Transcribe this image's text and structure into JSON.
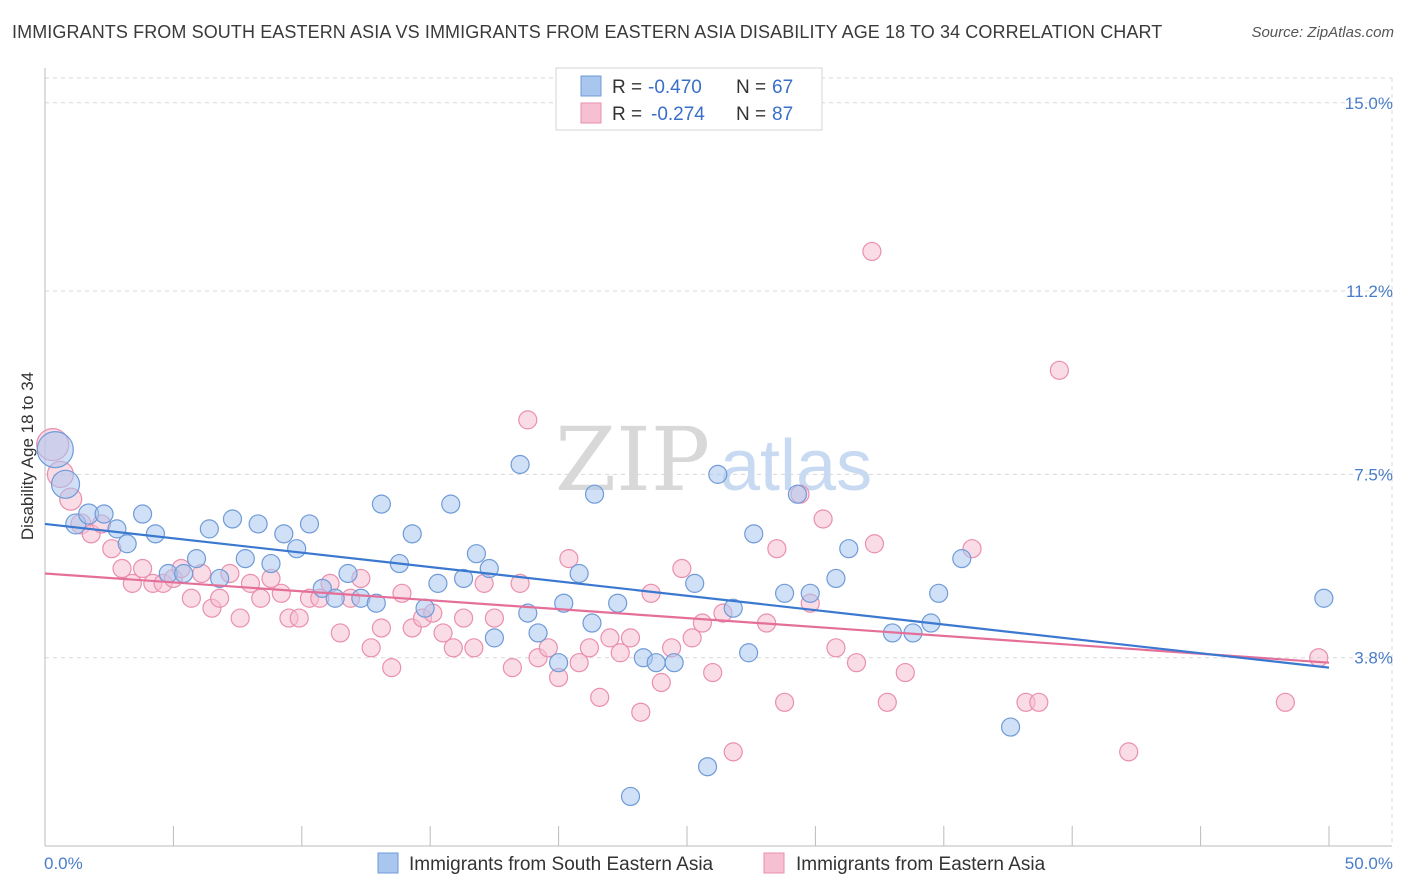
{
  "title": "IMMIGRANTS FROM SOUTH EASTERN ASIA VS IMMIGRANTS FROM EASTERN ASIA DISABILITY AGE 18 TO 34 CORRELATION CHART",
  "source": "Source: ZipAtlas.com",
  "watermark": {
    "zip": "ZIP",
    "atlas": "atlas"
  },
  "legend_box": {
    "rows": [
      {
        "r_label": "R =",
        "r_value": "-0.470",
        "n_label": "N =",
        "n_value": "67"
      },
      {
        "r_label": "R =",
        "r_value": "-0.274",
        "n_label": "N =",
        "n_value": "87"
      }
    ]
  },
  "bottom_legend": [
    "Immigrants from South Eastern Asia",
    "Immigrants from Eastern Asia"
  ],
  "colors": {
    "blue_fill": "#a9c6ef",
    "blue_stroke": "#6f9bd8",
    "blue_line": "#3b78d0",
    "pink_fill": "#f6c0d2",
    "pink_stroke": "#ea8fae",
    "pink_line": "#e46f99",
    "axis_label": "#4a7cc9",
    "grid": "#d8d8d8"
  },
  "chart_data": {
    "type": "scatter",
    "title": "IMMIGRANTS FROM SOUTH EASTERN ASIA VS IMMIGRANTS FROM EASTERN ASIA DISABILITY AGE 18 TO 34 CORRELATION CHART",
    "xlabel": "",
    "ylabel": "Disability Age 18 to 34",
    "xlim": [
      0,
      50
    ],
    "ylim": [
      0,
      15.5
    ],
    "x_tick_labels": [
      "0.0%",
      "50.0%"
    ],
    "y_ticks": [
      3.8,
      7.5,
      11.2,
      15.0
    ],
    "y_tick_labels": [
      "3.8%",
      "7.5%",
      "11.2%",
      "15.0%"
    ],
    "grid": true,
    "legend_position": "top-center",
    "series": [
      {
        "name": "Immigrants from South Eastern Asia",
        "R": -0.47,
        "N": 67,
        "trend": {
          "x": [
            0,
            50
          ],
          "y": [
            6.5,
            3.6
          ]
        },
        "points": [
          [
            0.4,
            8.0,
            18
          ],
          [
            0.8,
            7.3,
            14
          ],
          [
            1.2,
            6.5,
            10
          ],
          [
            1.7,
            6.7,
            10
          ],
          [
            2.3,
            6.7,
            9
          ],
          [
            2.8,
            6.4,
            9
          ],
          [
            3.2,
            6.1,
            9
          ],
          [
            3.8,
            6.7,
            9
          ],
          [
            4.3,
            6.3,
            9
          ],
          [
            4.8,
            5.5,
            9
          ],
          [
            5.4,
            5.5,
            9
          ],
          [
            5.9,
            5.8,
            9
          ],
          [
            6.4,
            6.4,
            9
          ],
          [
            6.8,
            5.4,
            9
          ],
          [
            7.3,
            6.6,
            9
          ],
          [
            7.8,
            5.8,
            9
          ],
          [
            8.3,
            6.5,
            9
          ],
          [
            8.8,
            5.7,
            9
          ],
          [
            9.3,
            6.3,
            9
          ],
          [
            9.8,
            6.0,
            9
          ],
          [
            10.3,
            6.5,
            9
          ],
          [
            10.8,
            5.2,
            9
          ],
          [
            11.3,
            5.0,
            9
          ],
          [
            11.8,
            5.5,
            9
          ],
          [
            12.3,
            5.0,
            9
          ],
          [
            12.9,
            4.9,
            9
          ],
          [
            13.1,
            6.9,
            9
          ],
          [
            13.8,
            5.7,
            9
          ],
          [
            14.3,
            6.3,
            9
          ],
          [
            14.8,
            4.8,
            9
          ],
          [
            15.3,
            5.3,
            9
          ],
          [
            15.8,
            6.9,
            9
          ],
          [
            16.3,
            5.4,
            9
          ],
          [
            16.8,
            5.9,
            9
          ],
          [
            17.3,
            5.6,
            9
          ],
          [
            17.5,
            4.2,
            9
          ],
          [
            18.5,
            7.7,
            9
          ],
          [
            18.8,
            4.7,
            9
          ],
          [
            19.2,
            4.3,
            9
          ],
          [
            20.0,
            3.7,
            9
          ],
          [
            20.2,
            4.9,
            9
          ],
          [
            20.8,
            5.5,
            9
          ],
          [
            21.3,
            4.5,
            9
          ],
          [
            21.4,
            7.1,
            9
          ],
          [
            22.3,
            4.9,
            9
          ],
          [
            22.8,
            1.0,
            9
          ],
          [
            23.3,
            3.8,
            9
          ],
          [
            23.8,
            3.7,
            9
          ],
          [
            24.5,
            3.7,
            9
          ],
          [
            25.3,
            5.3,
            9
          ],
          [
            25.8,
            1.6,
            9
          ],
          [
            26.2,
            7.5,
            9
          ],
          [
            26.8,
            4.8,
            9
          ],
          [
            27.4,
            3.9,
            9
          ],
          [
            27.6,
            6.3,
            9
          ],
          [
            28.8,
            5.1,
            9
          ],
          [
            29.3,
            7.1,
            9
          ],
          [
            29.8,
            5.1,
            9
          ],
          [
            30.8,
            5.4,
            9
          ],
          [
            31.3,
            6.0,
            9
          ],
          [
            33.0,
            4.3,
            9
          ],
          [
            33.8,
            4.3,
            9
          ],
          [
            34.5,
            4.5,
            9
          ],
          [
            34.8,
            5.1,
            9
          ],
          [
            35.7,
            5.8,
            9
          ],
          [
            37.6,
            2.4,
            9
          ],
          [
            49.8,
            5.0,
            9
          ]
        ]
      },
      {
        "name": "Immigrants from Eastern Asia",
        "R": -0.274,
        "N": 87,
        "trend": {
          "x": [
            0,
            50
          ],
          "y": [
            5.5,
            3.7
          ]
        },
        "points": [
          [
            0.3,
            8.1,
            16
          ],
          [
            0.6,
            7.5,
            13
          ],
          [
            1.0,
            7.0,
            11
          ],
          [
            1.4,
            6.5,
            10
          ],
          [
            1.8,
            6.3,
            9
          ],
          [
            2.2,
            6.5,
            9
          ],
          [
            2.6,
            6.0,
            9
          ],
          [
            3.0,
            5.6,
            9
          ],
          [
            3.4,
            5.3,
            9
          ],
          [
            3.8,
            5.6,
            9
          ],
          [
            4.2,
            5.3,
            9
          ],
          [
            4.6,
            5.3,
            9
          ],
          [
            5.0,
            5.4,
            9
          ],
          [
            5.3,
            5.6,
            9
          ],
          [
            5.7,
            5.0,
            9
          ],
          [
            6.1,
            5.5,
            9
          ],
          [
            6.5,
            4.8,
            9
          ],
          [
            6.8,
            5.0,
            9
          ],
          [
            7.2,
            5.5,
            9
          ],
          [
            7.6,
            4.6,
            9
          ],
          [
            8.0,
            5.3,
            9
          ],
          [
            8.4,
            5.0,
            9
          ],
          [
            8.8,
            5.4,
            9
          ],
          [
            9.2,
            5.1,
            9
          ],
          [
            9.5,
            4.6,
            9
          ],
          [
            9.9,
            4.6,
            9
          ],
          [
            10.3,
            5.0,
            9
          ],
          [
            10.7,
            5.0,
            9
          ],
          [
            11.1,
            5.3,
            9
          ],
          [
            11.5,
            4.3,
            9
          ],
          [
            11.9,
            5.0,
            9
          ],
          [
            12.3,
            5.4,
            9
          ],
          [
            12.7,
            4.0,
            9
          ],
          [
            13.1,
            4.4,
            9
          ],
          [
            13.5,
            3.6,
            9
          ],
          [
            13.9,
            5.1,
            9
          ],
          [
            14.3,
            4.4,
            9
          ],
          [
            14.7,
            4.6,
            9
          ],
          [
            15.1,
            4.7,
            9
          ],
          [
            15.5,
            4.3,
            9
          ],
          [
            15.9,
            4.0,
            9
          ],
          [
            16.3,
            4.6,
            9
          ],
          [
            16.7,
            4.0,
            9
          ],
          [
            17.1,
            5.3,
            9
          ],
          [
            17.5,
            4.6,
            9
          ],
          [
            18.2,
            3.6,
            9
          ],
          [
            18.5,
            5.3,
            9
          ],
          [
            18.8,
            8.6,
            9
          ],
          [
            19.2,
            3.8,
            9
          ],
          [
            19.6,
            4.0,
            9
          ],
          [
            20.0,
            3.4,
            9
          ],
          [
            20.4,
            5.8,
            9
          ],
          [
            20.8,
            3.7,
            9
          ],
          [
            21.2,
            4.0,
            9
          ],
          [
            21.6,
            3.0,
            9
          ],
          [
            22.0,
            4.2,
            9
          ],
          [
            22.4,
            3.9,
            9
          ],
          [
            22.8,
            4.2,
            9
          ],
          [
            23.2,
            2.7,
            9
          ],
          [
            23.6,
            5.1,
            9
          ],
          [
            24.0,
            3.3,
            9
          ],
          [
            24.4,
            4.0,
            9
          ],
          [
            24.8,
            5.6,
            9
          ],
          [
            25.2,
            4.2,
            9
          ],
          [
            25.6,
            4.5,
            9
          ],
          [
            26.0,
            3.5,
            9
          ],
          [
            26.4,
            4.7,
            9
          ],
          [
            26.8,
            1.9,
            9
          ],
          [
            28.1,
            4.5,
            9
          ],
          [
            28.5,
            6.0,
            9
          ],
          [
            28.8,
            2.9,
            9
          ],
          [
            29.4,
            7.1,
            9
          ],
          [
            29.8,
            4.9,
            9
          ],
          [
            30.3,
            6.6,
            9
          ],
          [
            30.8,
            4.0,
            9
          ],
          [
            31.6,
            3.7,
            9
          ],
          [
            32.2,
            12.0,
            9
          ],
          [
            32.3,
            6.1,
            9
          ],
          [
            32.8,
            2.9,
            9
          ],
          [
            33.5,
            3.5,
            9
          ],
          [
            36.1,
            6.0,
            9
          ],
          [
            38.2,
            2.9,
            9
          ],
          [
            38.7,
            2.9,
            9
          ],
          [
            39.5,
            9.6,
            9
          ],
          [
            42.2,
            1.9,
            9
          ],
          [
            48.3,
            2.9,
            9
          ],
          [
            49.6,
            3.8,
            9
          ]
        ]
      }
    ]
  }
}
